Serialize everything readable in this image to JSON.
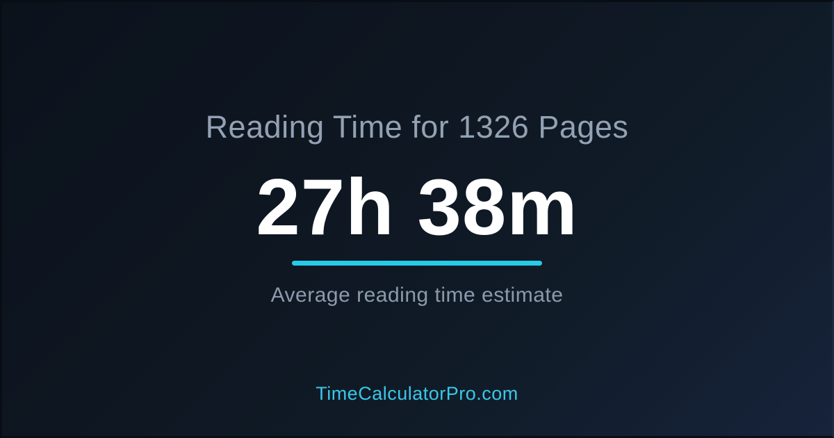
{
  "card": {
    "title": "Reading Time for 1326 Pages",
    "result_value": "27h 38m",
    "subtitle": "Average reading time estimate",
    "footer_link": "TimeCalculatorPro.com"
  },
  "colors": {
    "accent": "#26cbe8",
    "footer_link": "#3ac7e8",
    "title_text": "#93a1b3",
    "subtitle_text": "#8d9aac",
    "result_text": "#ffffff",
    "background_top": "#0b121c",
    "background_bottom": "#16233a"
  }
}
